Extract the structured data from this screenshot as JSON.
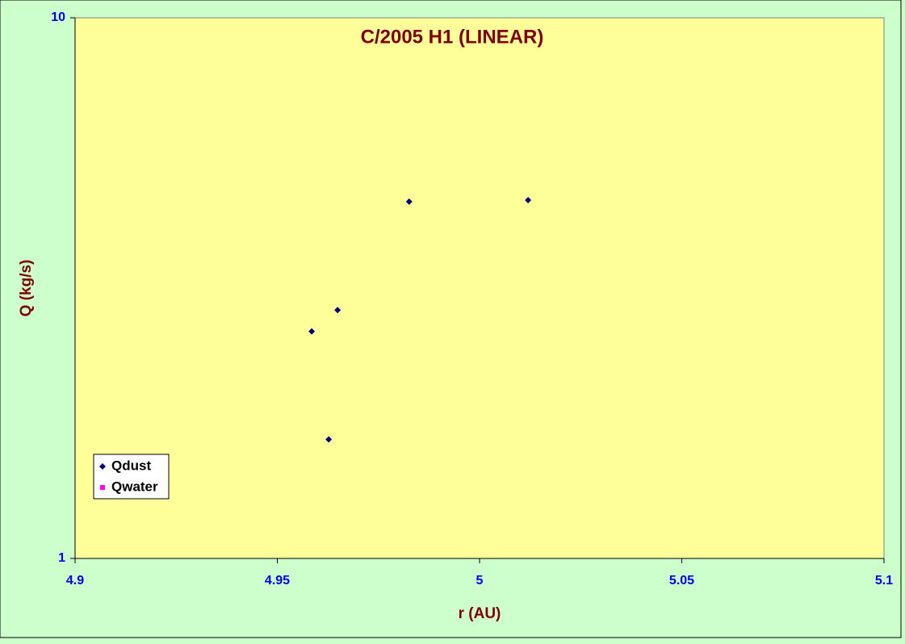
{
  "chart_data": {
    "type": "scatter",
    "title": "C/2005 H1 (LINEAR)",
    "x_label": "r (AU)",
    "y_label": "Q (kg/s)",
    "xlim": [
      4.9,
      5.1
    ],
    "xticks": [
      4.9,
      4.95,
      5,
      5.05,
      5.1
    ],
    "ylim": [
      1,
      10
    ],
    "yticks": [
      1,
      10
    ],
    "ylog": true,
    "legend": "lower-left",
    "series": [
      {
        "name": "Qdust",
        "color": "#000080",
        "x": [
          4.9585,
          4.9627,
          4.9649,
          4.9826,
          5.012
        ],
        "values": [
          2.63,
          1.66,
          2.88,
          4.57,
          4.6
        ]
      },
      {
        "name": "Qwater",
        "color": "#ff00ff",
        "x": [],
        "values": []
      }
    ]
  }
}
